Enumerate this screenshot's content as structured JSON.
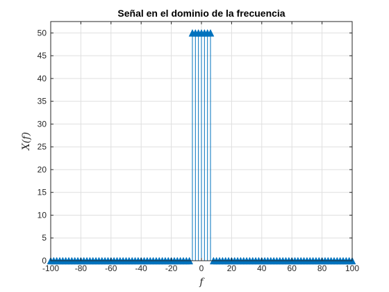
{
  "chart_data": {
    "type": "stem",
    "title": "Señal en el dominio de la frecuencia",
    "xlabel": "f",
    "ylabel": "X(f)",
    "xlim": [
      -100,
      100
    ],
    "ylim": [
      0,
      52.5
    ],
    "xticks": [
      -100,
      -80,
      -60,
      -40,
      -20,
      0,
      20,
      40,
      60,
      80,
      100
    ],
    "xtick_labels": [
      "-100",
      "-80",
      "-60",
      "-40",
      "-20",
      "0",
      "20",
      "40",
      "60",
      "80",
      "100"
    ],
    "yticks": [
      0,
      5,
      10,
      15,
      20,
      25,
      30,
      35,
      40,
      45,
      50
    ],
    "ytick_labels": [
      "0",
      "5",
      "10",
      "15",
      "20",
      "25",
      "30",
      "35",
      "40",
      "45",
      "50"
    ],
    "grid": true,
    "color": "#0072BD",
    "marker": "triangle-up",
    "series": [
      {
        "name": "X(f)",
        "x": [
          -100,
          -98,
          -96,
          -94,
          -92,
          -90,
          -88,
          -86,
          -84,
          -82,
          -80,
          -78,
          -76,
          -74,
          -72,
          -70,
          -68,
          -66,
          -64,
          -62,
          -60,
          -58,
          -56,
          -54,
          -52,
          -50,
          -48,
          -46,
          -44,
          -42,
          -40,
          -38,
          -36,
          -34,
          -32,
          -30,
          -28,
          -26,
          -24,
          -22,
          -20,
          -18,
          -16,
          -14,
          -12,
          -10,
          -8,
          -6,
          -4,
          -2,
          0,
          2,
          4,
          6,
          8,
          10,
          12,
          14,
          16,
          18,
          20,
          22,
          24,
          26,
          28,
          30,
          32,
          34,
          36,
          38,
          40,
          42,
          44,
          46,
          48,
          50,
          52,
          54,
          56,
          58,
          60,
          62,
          64,
          66,
          68,
          70,
          72,
          74,
          76,
          78,
          80,
          82,
          84,
          86,
          88,
          90,
          92,
          94,
          96,
          98,
          100
        ],
        "y": [
          0,
          0,
          0,
          0,
          0,
          0,
          0,
          0,
          0,
          0,
          0,
          0,
          0,
          0,
          0,
          0,
          0,
          0,
          0,
          0,
          0,
          0,
          0,
          0,
          0,
          0,
          0,
          0,
          0,
          0,
          0,
          0,
          0,
          0,
          0,
          0,
          0,
          0,
          0,
          0,
          0,
          0,
          0,
          0,
          0,
          0,
          0,
          50,
          50,
          50,
          50,
          50,
          50,
          50,
          0,
          0,
          0,
          0,
          0,
          0,
          0,
          0,
          0,
          0,
          0,
          0,
          0,
          0,
          0,
          0,
          0,
          0,
          0,
          0,
          0,
          0,
          0,
          0,
          0,
          0,
          0,
          0,
          0,
          0,
          0,
          0,
          0,
          0,
          0,
          0,
          0,
          0,
          0,
          0,
          0,
          0,
          0,
          0,
          0,
          0,
          0
        ]
      }
    ]
  }
}
